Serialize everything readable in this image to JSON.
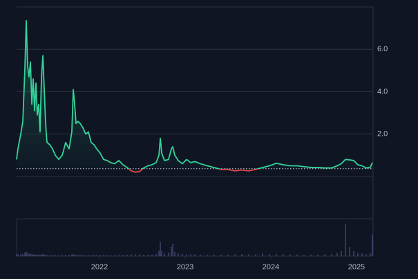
{
  "chart_data": {
    "type": "line",
    "x": [
      2021.032,
      2021.048,
      2021.081,
      2021.105,
      2021.129,
      2021.145,
      2021.161,
      2021.177,
      2021.194,
      2021.21,
      2021.226,
      2021.242,
      2021.258,
      2021.274,
      2021.29,
      2021.306,
      2021.323,
      2021.339,
      2021.355,
      2021.371,
      2021.387,
      2021.419,
      2021.452,
      2021.484,
      2021.524,
      2021.565,
      2021.605,
      2021.645,
      2021.677,
      2021.694,
      2021.71,
      2021.726,
      2021.75,
      2021.774,
      2021.806,
      2021.839,
      2021.871,
      2021.903,
      2021.935,
      2021.968,
      2022.008,
      2022.048,
      2022.089,
      2022.129,
      2022.177,
      2022.226,
      2022.274,
      2022.323,
      2022.371,
      2022.419,
      2022.468,
      2022.516,
      2022.565,
      2022.613,
      2022.661,
      2022.694,
      2022.71,
      2022.726,
      2022.758,
      2022.806,
      2022.839,
      2022.855,
      2022.879,
      2022.919,
      2022.968,
      2023.016,
      2023.065,
      2023.113,
      2023.177,
      2023.258,
      2023.339,
      2023.419,
      2023.5,
      2023.581,
      2023.661,
      2023.742,
      2023.823,
      2023.903,
      2023.984,
      2024.065,
      2024.145,
      2024.226,
      2024.306,
      2024.387,
      2024.468,
      2024.548,
      2024.629,
      2024.71,
      2024.774,
      2024.823,
      2024.871,
      2024.919,
      2024.968,
      2025.016,
      2025.065,
      2025.113,
      2025.161,
      2025.185
    ],
    "values": [
      0.8,
      1.3,
      2.0,
      2.6,
      5.1,
      7.35,
      5.2,
      4.7,
      5.4,
      3.4,
      4.6,
      3.1,
      4.4,
      2.9,
      3.4,
      2.1,
      4.7,
      5.7,
      4.1,
      2.5,
      1.6,
      1.5,
      1.3,
      1.0,
      0.8,
      1.0,
      1.6,
      1.3,
      2.1,
      4.1,
      3.4,
      2.5,
      2.6,
      2.5,
      2.3,
      2.0,
      2.1,
      1.6,
      1.5,
      1.3,
      1.1,
      0.8,
      0.75,
      0.65,
      0.6,
      0.75,
      0.55,
      0.42,
      0.26,
      0.2,
      0.23,
      0.4,
      0.5,
      0.55,
      0.65,
      1.0,
      1.8,
      1.1,
      0.75,
      0.8,
      1.3,
      1.4,
      1.0,
      0.75,
      0.6,
      0.8,
      0.65,
      0.7,
      0.6,
      0.5,
      0.42,
      0.33,
      0.33,
      0.26,
      0.3,
      0.26,
      0.33,
      0.42,
      0.5,
      0.62,
      0.55,
      0.5,
      0.5,
      0.46,
      0.42,
      0.42,
      0.4,
      0.4,
      0.5,
      0.6,
      0.8,
      0.78,
      0.75,
      0.55,
      0.5,
      0.4,
      0.42,
      0.65
    ],
    "volume": [
      0.5,
      0.5,
      0.6,
      0.6,
      1,
      1.2,
      0.8,
      0.6,
      0.7,
      0.5,
      0.5,
      0.4,
      0.4,
      0.4,
      0.4,
      0.3,
      0.5,
      0.6,
      0.4,
      0.3,
      0.3,
      0.3,
      0.3,
      0.3,
      0.3,
      0.3,
      0.4,
      0.3,
      0.4,
      0.6,
      0.4,
      0.3,
      0.3,
      0.3,
      0.3,
      0.3,
      0.3,
      0.3,
      0.3,
      0.3,
      0.3,
      0.3,
      0.3,
      0.3,
      0.3,
      0.3,
      0.3,
      0.4,
      0.5,
      0.5,
      0.5,
      0.4,
      0.4,
      0.4,
      0.6,
      1.5,
      4,
      1.5,
      0.8,
      1,
      2.5,
      3.5,
      1.2,
      0.8,
      0.6,
      0.5,
      0.5,
      0.5,
      0.4,
      0.4,
      0.4,
      0.4,
      0.4,
      0.5,
      0.6,
      0.5,
      0.5,
      0.8,
      0.6,
      0.6,
      0.5,
      0.5,
      0.4,
      0.4,
      0.4,
      0.4,
      0.5,
      0.6,
      1,
      1.5,
      9,
      2.5,
      1.5,
      1,
      0.8,
      0.6,
      0.8,
      6
    ],
    "line_color": "#34d399",
    "below_color": "#e5484d",
    "volume_color": "#4b4f7e",
    "baseline": 0.36,
    "xlim": [
      2021.032,
      2025.194
    ],
    "xticks": [
      2022,
      2023,
      2024,
      2025
    ],
    "ylim": [
      -2,
      8
    ],
    "yticks": [
      {
        "value": 2,
        "label": "2.0"
      },
      {
        "value": 4,
        "label": "4.0"
      },
      {
        "value": 6,
        "label": "6.0"
      }
    ],
    "vlim": [
      0,
      10
    ],
    "grid": true
  }
}
